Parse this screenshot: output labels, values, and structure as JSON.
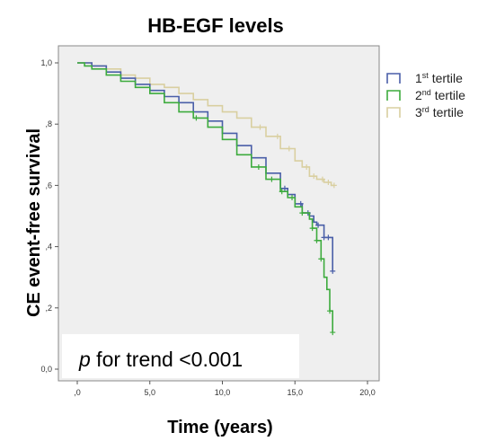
{
  "chart_data": {
    "type": "line",
    "title": "HB-EGF levels",
    "xlabel": "Time (years)",
    "ylabel": "CE event-free survival",
    "xlim": [
      0,
      20
    ],
    "ylim": [
      0,
      1
    ],
    "xticks": [
      ",0",
      "5,0",
      "10,0",
      "15,0",
      "20,0"
    ],
    "yticks": [
      "0,0",
      ",2",
      ",4",
      ",6",
      ",8",
      "1,0"
    ],
    "grid": false,
    "legend_position": "right",
    "annotation": {
      "prefix": "p",
      "text": " for trend <0.001"
    },
    "series": [
      {
        "name": "1st tertile",
        "legend": {
          "base": "1",
          "sup": "st",
          "rest": " tertile"
        },
        "color": "#4a5fa8",
        "x": [
          0,
          0.5,
          1,
          2,
          3,
          4,
          5,
          6,
          7,
          8,
          9,
          10,
          11,
          12,
          13,
          14,
          14.5,
          15,
          15.5,
          16,
          16.3,
          16.5,
          17,
          17.3,
          17.6
        ],
        "y": [
          1.0,
          1.0,
          0.99,
          0.97,
          0.95,
          0.93,
          0.91,
          0.89,
          0.87,
          0.84,
          0.81,
          0.77,
          0.73,
          0.69,
          0.64,
          0.59,
          0.57,
          0.54,
          0.51,
          0.5,
          0.48,
          0.47,
          0.43,
          0.43,
          0.32
        ],
        "censor_x": [
          14.3,
          15.4,
          15.9,
          16.6,
          17.0,
          17.3,
          17.6
        ]
      },
      {
        "name": "2nd tertile",
        "legend": {
          "base": "2",
          "sup": "nd",
          "rest": " tertile"
        },
        "color": "#3dab3d",
        "x": [
          0,
          0.5,
          1,
          2,
          3,
          4,
          5,
          6,
          7,
          8,
          9,
          10,
          11,
          12,
          13,
          14,
          14.5,
          15,
          15.5,
          16,
          16.2,
          16.5,
          16.8,
          17,
          17.2,
          17.4,
          17.6
        ],
        "y": [
          1.0,
          0.99,
          0.98,
          0.96,
          0.94,
          0.92,
          0.9,
          0.87,
          0.84,
          0.82,
          0.79,
          0.75,
          0.7,
          0.66,
          0.62,
          0.58,
          0.56,
          0.53,
          0.51,
          0.49,
          0.46,
          0.42,
          0.36,
          0.3,
          0.26,
          0.19,
          0.12
        ],
        "censor_x": [
          8.2,
          12.5,
          13.4,
          14.1,
          14.8,
          15.5,
          16.2,
          16.5,
          16.8,
          17.4,
          17.6
        ]
      },
      {
        "name": "3rd tertile",
        "legend": {
          "base": "3",
          "sup": "rd",
          "rest": " tertile"
        },
        "color": "#d9cfa0",
        "x": [
          0,
          1,
          2,
          3,
          4,
          5,
          6,
          7,
          8,
          9,
          10,
          11,
          12,
          13,
          14,
          15,
          15.5,
          16,
          16.5,
          17,
          17.5,
          17.7
        ],
        "y": [
          1.0,
          0.99,
          0.98,
          0.96,
          0.95,
          0.93,
          0.92,
          0.9,
          0.88,
          0.86,
          0.84,
          0.82,
          0.79,
          0.76,
          0.72,
          0.68,
          0.66,
          0.63,
          0.62,
          0.61,
          0.6,
          0.6
        ],
        "censor_x": [
          12.6,
          13.8,
          14.6,
          15.8,
          16.3,
          16.9,
          17.3,
          17.7
        ]
      }
    ]
  }
}
